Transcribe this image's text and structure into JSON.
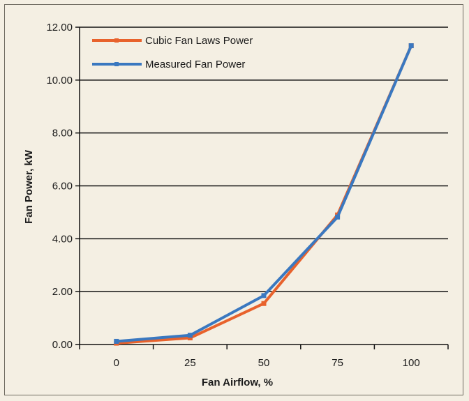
{
  "chart_data": {
    "type": "line",
    "title": "",
    "xlabel": "Fan Airflow, %",
    "ylabel": "Fan Power, kW",
    "x": [
      0,
      25,
      50,
      75,
      100
    ],
    "x_tick_labels": [
      "0",
      "25",
      "50",
      "75",
      "100"
    ],
    "y_tick_labels": [
      "0.00",
      "2.00",
      "4.00",
      "6.00",
      "8.00",
      "10.00",
      "12.00"
    ],
    "xlim": [
      -12.5,
      112.5
    ],
    "ylim": [
      0,
      12
    ],
    "grid": "horizontal",
    "legend_position": "top-left",
    "series": [
      {
        "name": "Cubic Fan Laws Power",
        "color": "#e8622c",
        "values": [
          0.05,
          0.25,
          1.55,
          4.9,
          11.3
        ]
      },
      {
        "name": "Measured Fan Power",
        "color": "#3a78c0",
        "values": [
          0.12,
          0.35,
          1.85,
          4.82,
          11.3
        ]
      }
    ]
  }
}
